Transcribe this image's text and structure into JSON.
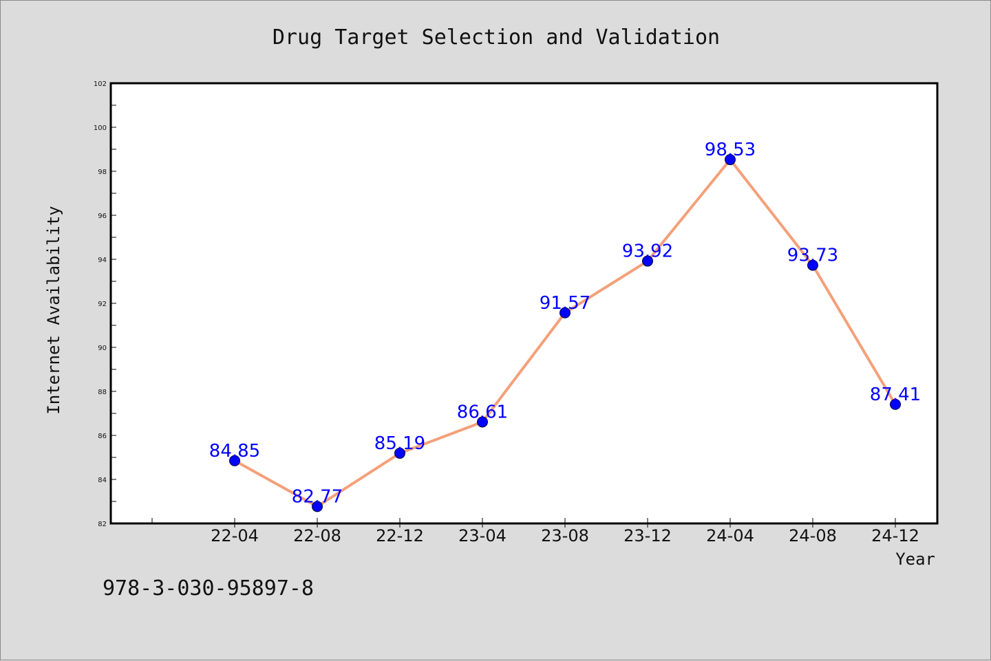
{
  "chart_data": {
    "type": "line",
    "title": "Drug Target Selection and Validation",
    "xlabel": "Year",
    "ylabel": "Internet Availability",
    "categories": [
      "22-04",
      "22-08",
      "22-12",
      "23-04",
      "23-08",
      "23-12",
      "24-04",
      "24-08",
      "24-12"
    ],
    "series": [
      {
        "values": [
          84.85,
          82.77,
          85.19,
          86.61,
          91.57,
          93.92,
          98.53,
          93.73,
          87.41
        ],
        "line_color": "#f4a07a",
        "marker_color": "#0000ff"
      }
    ],
    "ylim": [
      82,
      102
    ],
    "yticks": [
      "82",
      "84",
      "86",
      "88",
      "90",
      "92",
      "94",
      "96",
      "98",
      "100",
      "102"
    ],
    "data_labels": [
      "84.85",
      "82.77",
      "85.19",
      "86.61",
      "91.57",
      "93.92",
      "98.53",
      "93.73",
      "87.41"
    ],
    "grid": false,
    "legend": "none"
  },
  "footer": {
    "text": "978-3-030-95897-8"
  }
}
